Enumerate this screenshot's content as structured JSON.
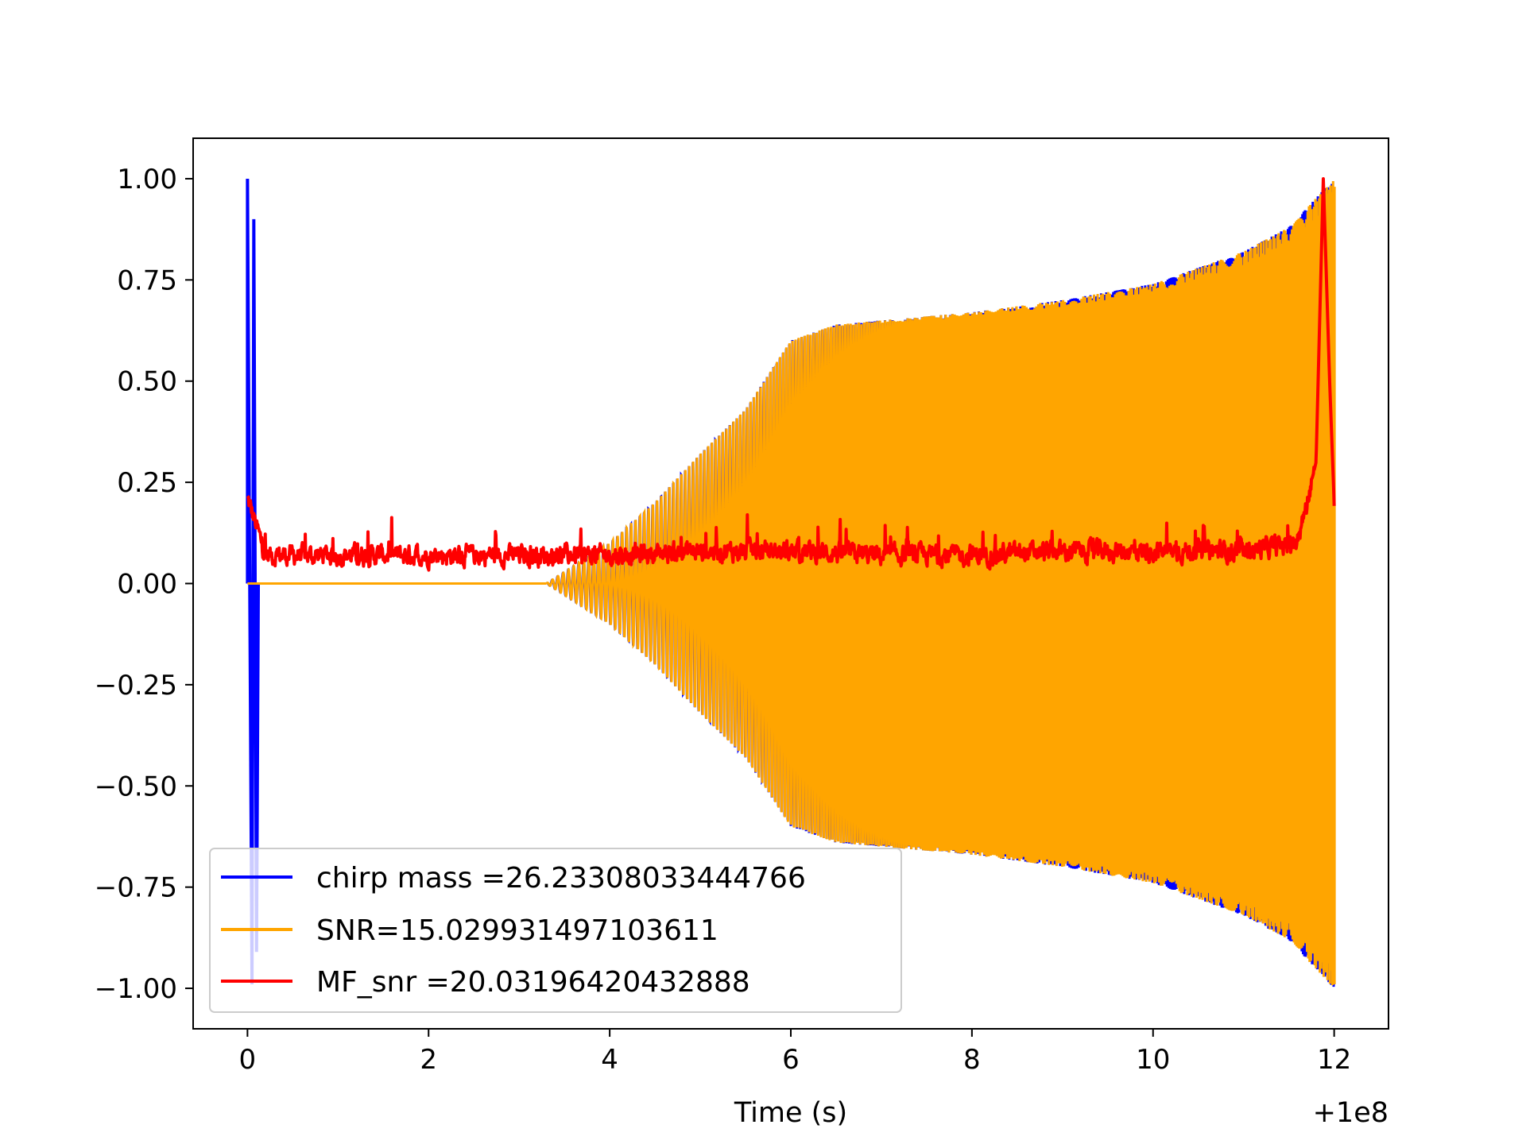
{
  "chart_data": {
    "type": "line",
    "title": "",
    "xlabel": "Time (s)",
    "ylabel": "",
    "x_offset_text": "+1e8",
    "xlim": [
      -0.6,
      12.6
    ],
    "ylim": [
      -1.1,
      1.1
    ],
    "xticks": [
      0,
      2,
      4,
      6,
      8,
      10,
      12
    ],
    "xtick_labels": [
      "0",
      "2",
      "4",
      "6",
      "8",
      "10",
      "12"
    ],
    "yticks": [
      1.0,
      0.75,
      0.5,
      0.25,
      0.0,
      -0.25,
      -0.5,
      -0.75,
      -1.0
    ],
    "ytick_labels": [
      "1.00",
      "0.75",
      "0.50",
      "0.25",
      "0.00",
      "−0.25",
      "−0.50",
      "−0.75",
      "−1.00"
    ],
    "grid": false,
    "legend_position": "lower-left",
    "series": [
      {
        "name": "chirp mass =26.23308033444766",
        "color": "#0000ff",
        "style": "oscillating envelope",
        "spikes": [
          {
            "x": 0.0,
            "y": 1.0
          },
          {
            "x": 0.05,
            "y": -0.99
          },
          {
            "x": 0.07,
            "y": 0.9
          },
          {
            "x": 0.1,
            "y": -0.91
          }
        ],
        "envelope": [
          {
            "x": 3.3,
            "y": 0.0
          },
          {
            "x": 4.0,
            "y": 0.1
          },
          {
            "x": 4.5,
            "y": 0.2
          },
          {
            "x": 5.0,
            "y": 0.32
          },
          {
            "x": 5.5,
            "y": 0.43
          },
          {
            "x": 6.0,
            "y": 0.6
          },
          {
            "x": 6.5,
            "y": 0.64
          },
          {
            "x": 7.0,
            "y": 0.65
          },
          {
            "x": 8.0,
            "y": 0.67
          },
          {
            "x": 9.0,
            "y": 0.7
          },
          {
            "x": 10.0,
            "y": 0.74
          },
          {
            "x": 11.0,
            "y": 0.82
          },
          {
            "x": 11.5,
            "y": 0.88
          },
          {
            "x": 12.0,
            "y": 1.0
          }
        ]
      },
      {
        "name": "SNR=15.029931497103611",
        "color": "#ffa500",
        "style": "oscillating envelope",
        "envelope": [
          {
            "x": 0.0,
            "y": 0.0
          },
          {
            "x": 3.3,
            "y": 0.0
          },
          {
            "x": 4.0,
            "y": 0.1
          },
          {
            "x": 4.5,
            "y": 0.2
          },
          {
            "x": 5.0,
            "y": 0.32
          },
          {
            "x": 5.5,
            "y": 0.43
          },
          {
            "x": 6.0,
            "y": 0.6
          },
          {
            "x": 6.5,
            "y": 0.64
          },
          {
            "x": 7.0,
            "y": 0.65
          },
          {
            "x": 8.0,
            "y": 0.67
          },
          {
            "x": 9.0,
            "y": 0.7
          },
          {
            "x": 10.0,
            "y": 0.74
          },
          {
            "x": 11.0,
            "y": 0.82
          },
          {
            "x": 11.5,
            "y": 0.88
          },
          {
            "x": 12.0,
            "y": 1.0
          }
        ]
      },
      {
        "name": "MF_snr =20.03196420432888",
        "color": "#ff0000",
        "style": "noisy line",
        "points": [
          {
            "x": 0.0,
            "y": 0.21
          },
          {
            "x": 0.2,
            "y": 0.07
          },
          {
            "x": 1.0,
            "y": 0.07
          },
          {
            "x": 2.0,
            "y": 0.07
          },
          {
            "x": 3.0,
            "y": 0.07
          },
          {
            "x": 4.0,
            "y": 0.07
          },
          {
            "x": 5.0,
            "y": 0.08
          },
          {
            "x": 6.0,
            "y": 0.08
          },
          {
            "x": 7.0,
            "y": 0.07
          },
          {
            "x": 8.0,
            "y": 0.07
          },
          {
            "x": 9.0,
            "y": 0.08
          },
          {
            "x": 10.0,
            "y": 0.08
          },
          {
            "x": 11.0,
            "y": 0.08
          },
          {
            "x": 11.6,
            "y": 0.1
          },
          {
            "x": 11.8,
            "y": 0.3
          },
          {
            "x": 11.88,
            "y": 1.0
          },
          {
            "x": 11.95,
            "y": 0.5
          },
          {
            "x": 12.0,
            "y": 0.2
          }
        ]
      }
    ]
  }
}
